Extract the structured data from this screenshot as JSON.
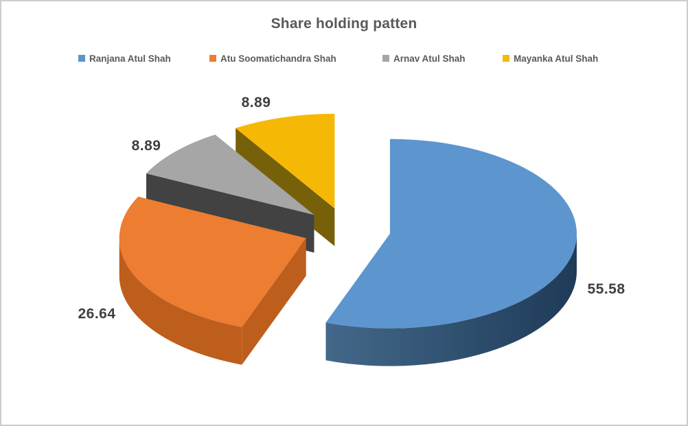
{
  "chart_data": {
    "type": "pie",
    "style": "3d-exploded",
    "title": "Share holding patten",
    "legend_position": "top",
    "direction": "clockwise",
    "start_angle_deg": 0,
    "background": "#FFFFFF",
    "title_color": "#595959",
    "label_color": "#3F3F3F",
    "series": [
      {
        "name": "Ranjana Atul Shah",
        "value": 55.58,
        "color": "#5D95CF",
        "side_color": "#2B4C6E",
        "side_gradient": [
          "#44688A",
          "#1E3B58"
        ]
      },
      {
        "name": "Atu Soomatichandra Shah",
        "value": 26.64,
        "color": "#EC7D31",
        "side_color": "#BE5E1D"
      },
      {
        "name": "Arnav Atul Shah",
        "value": 8.89,
        "color": "#A6A6A6",
        "side_color": "#424242"
      },
      {
        "name": "Mayanka Atul Shah",
        "value": 8.89,
        "color": "#F5B905",
        "side_color": "#77600A"
      }
    ],
    "data_labels": [
      "55.58",
      "26.64",
      "8.89",
      "8.89"
    ]
  }
}
